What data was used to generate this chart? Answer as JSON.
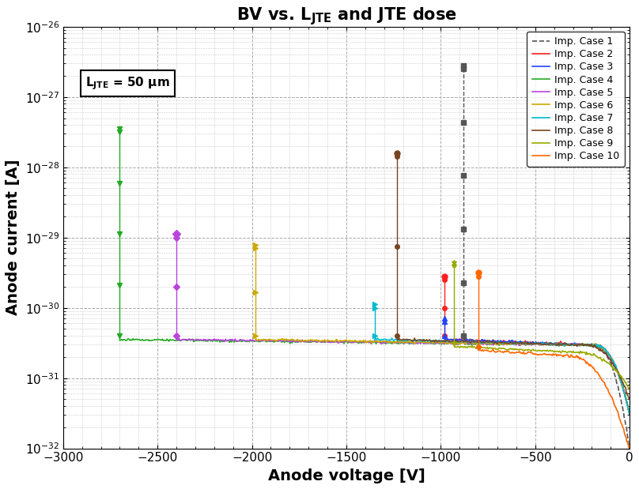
{
  "title": "BV vs. L$_{JTE}$ and JTE dose",
  "xlabel": "Anode voltage [V]",
  "ylabel": "Anode current [A]",
  "annotation": "L$_{JTE}$ = 50 μm",
  "xlim": [
    -3000,
    0
  ],
  "ylim_log": [
    -32,
    -26
  ],
  "cases": [
    {
      "label": "Imp. Case 1",
      "color": "#555555",
      "marker": "s",
      "linestyle": "--",
      "bv": -880,
      "spike_top": -26.55,
      "flat_log": -30.45,
      "drop_start": -200,
      "drop_end_log": -32.0,
      "n_markers_on_spike": 6
    },
    {
      "label": "Imp. Case 2",
      "color": "#ff2020",
      "marker": "o",
      "linestyle": "-",
      "bv": -980,
      "spike_top": -29.55,
      "flat_log": -30.45,
      "drop_start": -200,
      "drop_end_log": -31.5,
      "n_markers_on_spike": 3
    },
    {
      "label": "Imp. Case 3",
      "color": "#2244ff",
      "marker": "^",
      "linestyle": "-",
      "bv": -980,
      "spike_top": -30.15,
      "flat_log": -30.45,
      "drop_start": -200,
      "drop_end_log": -31.5,
      "n_markers_on_spike": 2
    },
    {
      "label": "Imp. Case 4",
      "color": "#22aa22",
      "marker": "v",
      "linestyle": "-",
      "bv": -2700,
      "spike_top": -27.45,
      "flat_log": -30.45,
      "drop_start": -200,
      "drop_end_log": -31.5,
      "n_markers_on_spike": 5
    },
    {
      "label": "Imp. Case 5",
      "color": "#bb44dd",
      "marker": "D",
      "linestyle": "-",
      "bv": -2400,
      "spike_top": -28.95,
      "flat_log": -30.45,
      "drop_start": -200,
      "drop_end_log": -31.5,
      "n_markers_on_spike": 3
    },
    {
      "label": "Imp. Case 6",
      "color": "#ccaa00",
      "marker": ">",
      "linestyle": "-",
      "bv": -1980,
      "spike_top": -29.1,
      "flat_log": -30.45,
      "drop_start": -200,
      "drop_end_log": -31.5,
      "n_markers_on_spike": 3
    },
    {
      "label": "Imp. Case 7",
      "color": "#00bbcc",
      "marker": ">",
      "linestyle": "-",
      "bv": -1350,
      "spike_top": -29.95,
      "flat_log": -30.45,
      "drop_start": -200,
      "drop_end_log": -31.5,
      "n_markers_on_spike": 2
    },
    {
      "label": "Imp. Case 8",
      "color": "#774422",
      "marker": "o",
      "linestyle": "-",
      "bv": -1230,
      "spike_top": -27.8,
      "flat_log": -30.45,
      "drop_start": -250,
      "drop_end_log": -31.3,
      "n_markers_on_spike": 3
    },
    {
      "label": "Imp. Case 9",
      "color": "#99aa00",
      "marker": "*",
      "linestyle": "-",
      "bv": -930,
      "spike_top": -29.35,
      "flat_log": -30.55,
      "drop_start": -300,
      "drop_end_log": -31.15,
      "n_markers_on_spike": 2
    },
    {
      "label": "Imp. Case 10",
      "color": "#ff6600",
      "marker": "o",
      "linestyle": "-",
      "bv": -800,
      "spike_top": -29.5,
      "flat_log": -30.6,
      "drop_start": -350,
      "drop_end_log": -32.0,
      "n_markers_on_spike": 2
    }
  ]
}
